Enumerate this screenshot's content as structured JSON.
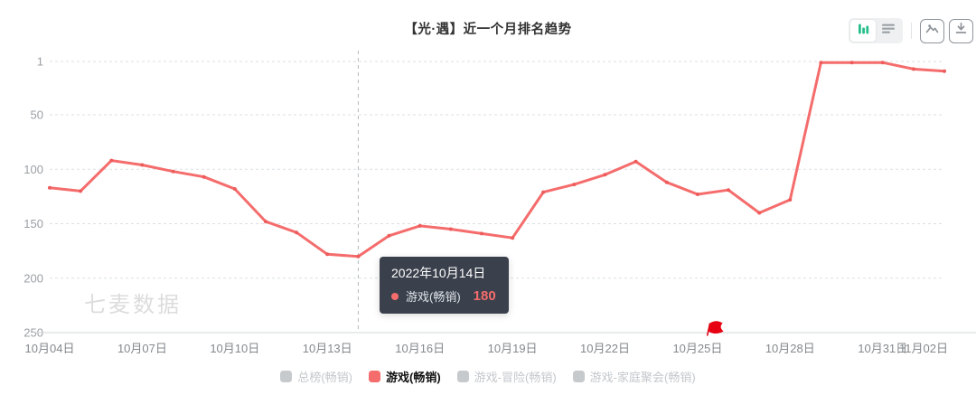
{
  "header": {
    "title": "【光·遇】近一个月排名趋势"
  },
  "toolbar": {
    "chart_view_icon": "bar-chart-icon",
    "list_view_icon": "list-icon",
    "export_image_icon": "image-icon",
    "download_icon": "download-icon",
    "accent_color": "#26bf8c"
  },
  "chart_data": {
    "type": "line",
    "title": "【光·遇】近一个月排名趋势",
    "x": [
      "10月04日",
      "10月05日",
      "10月06日",
      "10月07日",
      "10月08日",
      "10月09日",
      "10月10日",
      "10月11日",
      "10月12日",
      "10月13日",
      "10月14日",
      "10月15日",
      "10月16日",
      "10月17日",
      "10月18日",
      "10月19日",
      "10月20日",
      "10月21日",
      "10月22日",
      "10月23日",
      "10月24日",
      "10月25日",
      "10月26日",
      "10月27日",
      "10月28日",
      "10月29日",
      "10月30日",
      "10月31日",
      "11月01日",
      "11月02日"
    ],
    "x_tick_indices": [
      0,
      3,
      6,
      9,
      12,
      15,
      18,
      21,
      24,
      27,
      29
    ],
    "series": [
      {
        "name": "游戏(畅销)",
        "color": "#f56c6c",
        "marker_color": "#ee5b5b",
        "values": [
          117,
          120,
          92,
          96,
          102,
          107,
          118,
          148,
          158,
          178,
          180,
          161,
          152,
          155,
          159,
          163,
          121,
          114,
          105,
          93,
          112,
          123,
          119,
          140,
          128,
          2,
          2,
          2,
          8,
          10
        ]
      }
    ],
    "y_axis": {
      "inverted": true,
      "range": [
        1,
        250
      ],
      "ticks": [
        1,
        50,
        100,
        150,
        200,
        250
      ]
    },
    "grid": true,
    "legend_position": "bottom"
  },
  "tooltip": {
    "date": "2022年10月14日",
    "series": "游戏(畅销)",
    "value": "180",
    "value_color": "#f56c6c",
    "highlight_index": 10
  },
  "flag": {
    "near_date": "10月25日",
    "color": "#e60012",
    "position_index": 21.4
  },
  "watermark": "七麦数据",
  "legend": {
    "items": [
      {
        "label": "总榜(畅销)",
        "active": false,
        "color": "#c6cacd"
      },
      {
        "label": "游戏(畅销)",
        "active": true,
        "color": "#f56c6c"
      },
      {
        "label": "游戏-冒险(畅销)",
        "active": false,
        "color": "#c6cacd"
      },
      {
        "label": "游戏-家庭聚会(畅销)",
        "active": false,
        "color": "#c6cacd"
      }
    ]
  }
}
